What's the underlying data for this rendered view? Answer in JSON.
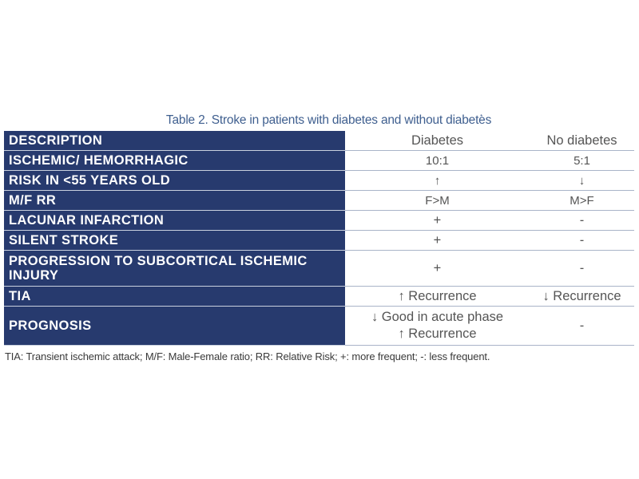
{
  "caption": "Table 2. Stroke in patients with diabetes and without diabetes",
  "caption_marker": "*",
  "headers": {
    "description": "DESCRIPTION",
    "diabetes": "Diabetes",
    "no_diabetes": "No diabetes"
  },
  "rows": [
    {
      "label": "ISCHEMIC/ HEMORRHAGIC",
      "diabetes": "10:1",
      "no_diabetes": "5:1"
    },
    {
      "label": "RISK IN <55 YEARS OLD",
      "diabetes": "↑",
      "no_diabetes": "↓"
    },
    {
      "label": "M/F RR",
      "diabetes": "F>M",
      "no_diabetes": "M>F"
    },
    {
      "label": "LACUNAR INFARCTION",
      "diabetes": "+",
      "no_diabetes": "-"
    },
    {
      "label": "SILENT STROKE",
      "diabetes": "+",
      "no_diabetes": "-"
    },
    {
      "label": "PROGRESSION TO SUBCORTICAL ISCHEMIC INJURY",
      "diabetes": "+",
      "no_diabetes": "-"
    },
    {
      "label": "TIA",
      "diabetes": "↑ Recurrence",
      "no_diabetes": "↓ Recurrence"
    },
    {
      "label": "PROGNOSIS",
      "diabetes_line1": "↓ Good in acute phase",
      "diabetes_line2": "↑ Recurrence",
      "no_diabetes": "-"
    }
  ],
  "footnote": "TIA: Transient ischemic attack; M/F: Male-Female ratio; RR: Relative Risk; +: more frequent; -: less frequent.",
  "colors": {
    "header_bg": "#273a6e",
    "caption": "#3f5f8f",
    "border": "#a9b4c8"
  }
}
